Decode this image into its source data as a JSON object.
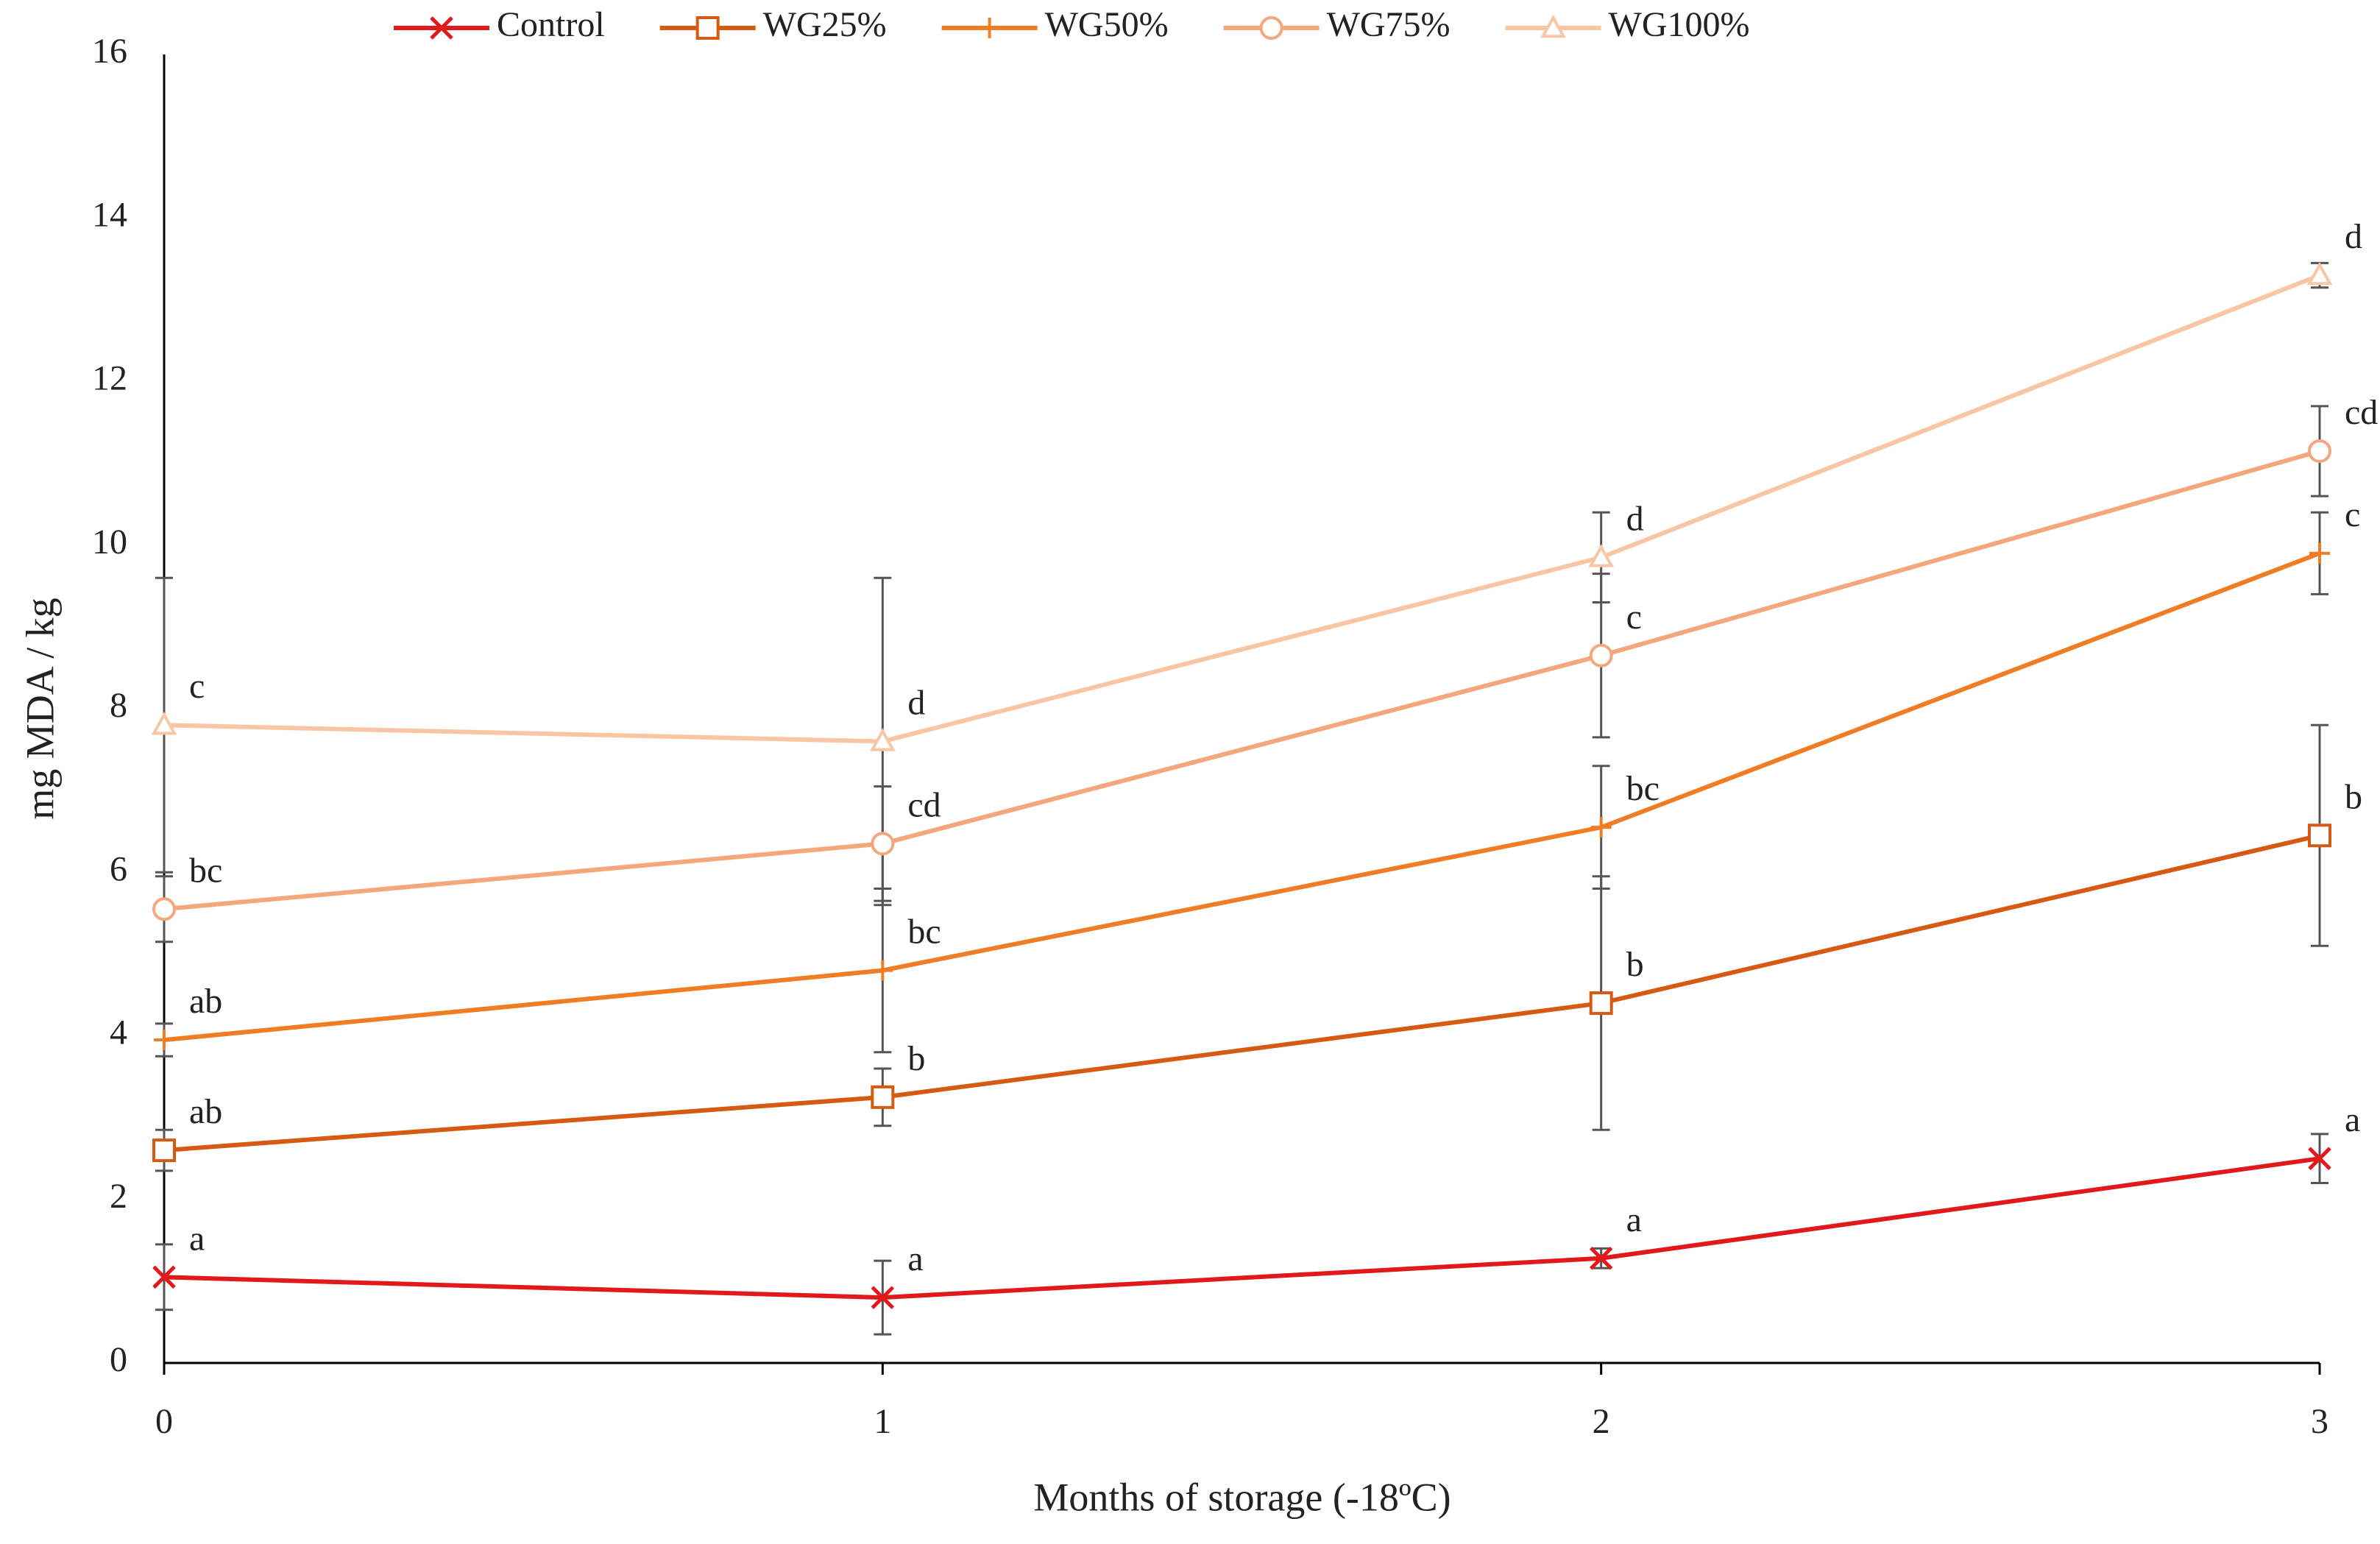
{
  "chart_data": {
    "type": "line",
    "x_label": "Months of storage (-18ºC)",
    "y_label": "mg MDA / kg",
    "x": [
      0,
      1,
      2,
      3
    ],
    "xlim": [
      0,
      3
    ],
    "xticks": [
      0,
      1,
      2,
      3
    ],
    "ylim": [
      0,
      16
    ],
    "yticks": [
      0,
      2,
      4,
      6,
      8,
      10,
      12,
      14,
      16
    ],
    "grid": false,
    "legend": "top",
    "series": [
      {
        "name": "Control",
        "color": "#e2191b",
        "marker": "x",
        "values": [
          1.05,
          0.8,
          1.28,
          2.5
        ],
        "errors": [
          0.4,
          0.45,
          0.12,
          0.3
        ],
        "letters": [
          "a",
          "a",
          "a",
          "a"
        ]
      },
      {
        "name": "WG25%",
        "color": "#d65a12",
        "marker": "square",
        "values": [
          2.6,
          3.25,
          4.4,
          6.45
        ],
        "errors": [
          0.25,
          0.35,
          1.55,
          1.35
        ],
        "letters": [
          "ab",
          "b",
          "b",
          "b"
        ]
      },
      {
        "name": "WG50%",
        "color": "#f07d23",
        "marker": "plus",
        "values": [
          3.95,
          4.8,
          6.55,
          9.9
        ],
        "errors": [
          0.2,
          1.0,
          0.75,
          0.5
        ],
        "letters": [
          "ab",
          "bc",
          "bc",
          "c"
        ]
      },
      {
        "name": "WG75%",
        "color": "#f4a77a",
        "marker": "circle",
        "values": [
          5.55,
          6.35,
          8.65,
          11.15
        ],
        "errors": [
          0.4,
          0.7,
          1.0,
          0.55
        ],
        "letters": [
          "bc",
          "cd",
          "c",
          "cd"
        ]
      },
      {
        "name": "WG100%",
        "color": "#f9c6a5",
        "marker": "triangle",
        "values": [
          7.8,
          7.6,
          9.85,
          13.3
        ],
        "errors": [
          1.8,
          2.0,
          0.55,
          0.15
        ],
        "letters": [
          "c",
          "d",
          "d",
          "d"
        ]
      }
    ]
  }
}
